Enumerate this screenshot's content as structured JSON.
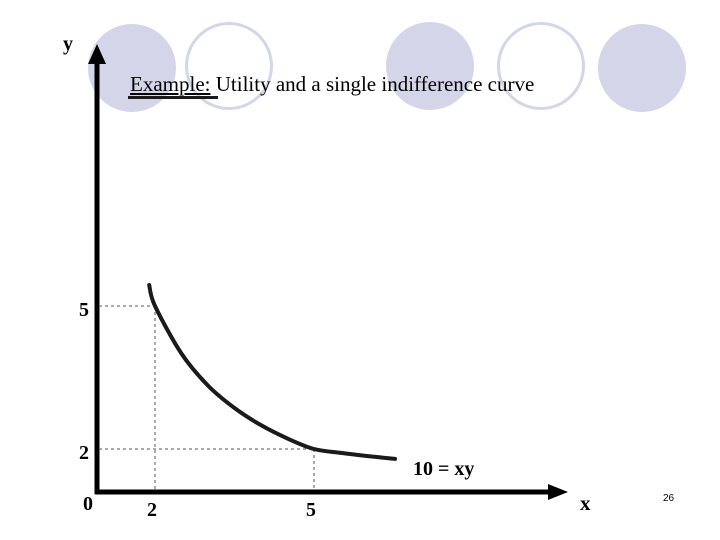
{
  "title": {
    "prefix": "Example:",
    "rest": " Utility and a single indifference curve"
  },
  "axes": {
    "x_label": "x",
    "y_label": "y",
    "origin_label": "0"
  },
  "ticks": {
    "x": [
      "2",
      "5"
    ],
    "y": [
      "5",
      "2"
    ]
  },
  "curve_label": "10 = xy",
  "slide_number": "26",
  "colors": {
    "decor": "#d5d5ea",
    "axis": "#000000",
    "curve": "#1a1a1a",
    "guide": "#555555"
  },
  "chart_data": {
    "type": "line",
    "equation": "10 = xy",
    "series": [
      {
        "name": "10 = xy",
        "x": [
          1.8,
          2,
          2.5,
          3,
          3.5,
          4,
          4.5,
          5,
          5.5,
          6,
          6.5
        ],
        "y": [
          5.56,
          5,
          4,
          3.33,
          2.86,
          2.5,
          2.22,
          2,
          1.82,
          1.67,
          1.54
        ]
      }
    ],
    "marked_points": [
      {
        "x": 2,
        "y": 5
      },
      {
        "x": 5,
        "y": 2
      }
    ],
    "xlabel": "x",
    "ylabel": "y"
  }
}
